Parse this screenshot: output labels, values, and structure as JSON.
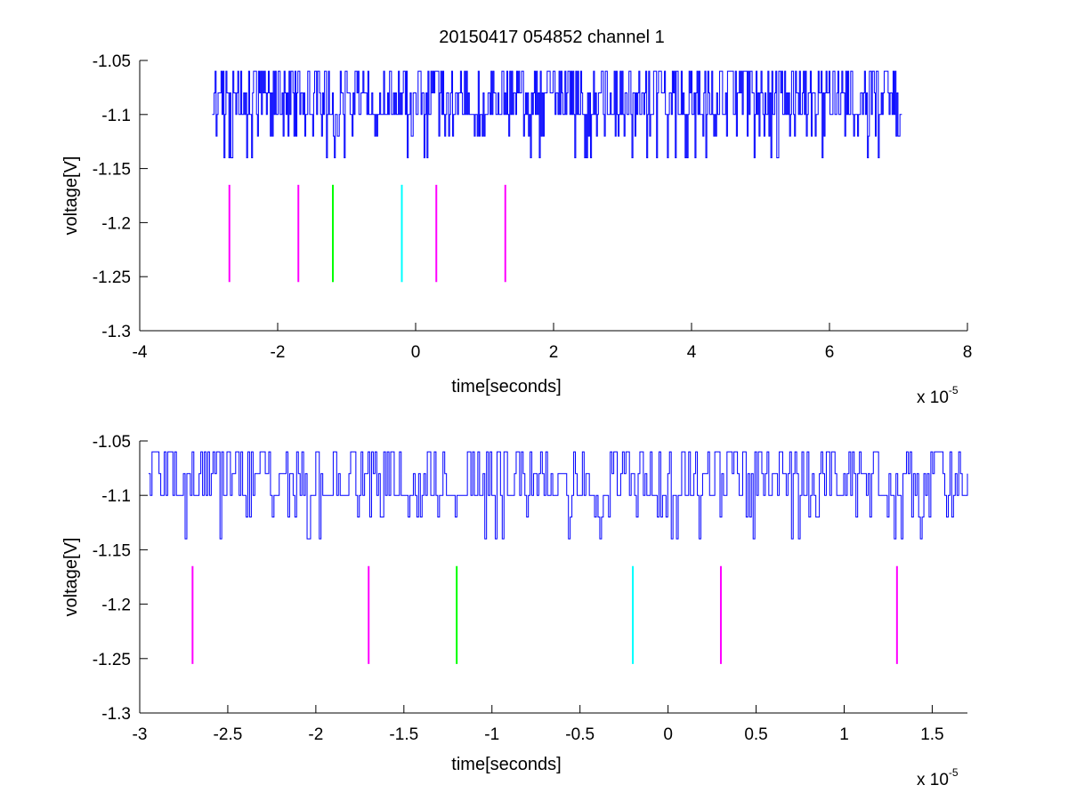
{
  "figure": {
    "title": "20150417 054852 channel 1"
  },
  "chart_data": [
    {
      "type": "line",
      "title": "20150417 054852 channel 1",
      "xlabel": "time[seconds]",
      "ylabel": "voltage[V]",
      "x_scale_label": "x 10",
      "x_scale_exponent": "-5",
      "xlim": [
        -4,
        8
      ],
      "ylim": [
        -1.3,
        -1.05
      ],
      "xticks": [
        -4,
        -2,
        0,
        2,
        4,
        6,
        8
      ],
      "xtick_labels": [
        "-4",
        "-2",
        "0",
        "2",
        "4",
        "6",
        "8"
      ],
      "yticks": [
        -1.05,
        -1.1,
        -1.15,
        -1.2,
        -1.25,
        -1.3
      ],
      "ytick_labels": [
        "-1.05",
        "-1.1",
        "-1.15",
        "-1.2",
        "-1.25",
        "-1.3"
      ],
      "grid": false,
      "signal": {
        "color": "#0000ff",
        "x_range": [
          -2.95,
          7.05
        ],
        "levels": [
          -1.14,
          -1.12,
          -1.1,
          -1.08,
          -1.06
        ],
        "baseline": -1.1
      },
      "markers": [
        {
          "x": -2.7,
          "color": "#ff00ff",
          "y_range": [
            -1.255,
            -1.165
          ]
        },
        {
          "x": -1.7,
          "color": "#ff00ff",
          "y_range": [
            -1.255,
            -1.165
          ]
        },
        {
          "x": -1.2,
          "color": "#00ff00",
          "y_range": [
            -1.255,
            -1.165
          ]
        },
        {
          "x": -0.2,
          "color": "#00ffff",
          "y_range": [
            -1.255,
            -1.165
          ]
        },
        {
          "x": 0.3,
          "color": "#ff00ff",
          "y_range": [
            -1.255,
            -1.165
          ]
        },
        {
          "x": 1.3,
          "color": "#ff00ff",
          "y_range": [
            -1.255,
            -1.165
          ]
        }
      ]
    },
    {
      "type": "line",
      "title": "",
      "xlabel": "time[seconds]",
      "ylabel": "voltage[V]",
      "x_scale_label": "x 10",
      "x_scale_exponent": "-5",
      "xlim": [
        -3,
        1.7
      ],
      "ylim": [
        -1.3,
        -1.05
      ],
      "xticks": [
        -3,
        -2.5,
        -2,
        -1.5,
        -1,
        -0.5,
        0,
        0.5,
        1,
        1.5
      ],
      "xtick_labels": [
        "-3",
        "-2.5",
        "-2",
        "-1.5",
        "-1",
        "-0.5",
        "0",
        "0.5",
        "1",
        "1.5"
      ],
      "yticks": [
        -1.05,
        -1.1,
        -1.15,
        -1.2,
        -1.25,
        -1.3
      ],
      "ytick_labels": [
        "-1.05",
        "-1.1",
        "-1.15",
        "-1.2",
        "-1.25",
        "-1.3"
      ],
      "grid": false,
      "signal": {
        "color": "#0000ff",
        "x_range": [
          -2.95,
          1.7
        ],
        "levels": [
          -1.14,
          -1.12,
          -1.1,
          -1.08,
          -1.06
        ],
        "baseline": -1.1
      },
      "markers": [
        {
          "x": -2.7,
          "color": "#ff00ff",
          "y_range": [
            -1.255,
            -1.165
          ]
        },
        {
          "x": -1.7,
          "color": "#ff00ff",
          "y_range": [
            -1.255,
            -1.165
          ]
        },
        {
          "x": -1.2,
          "color": "#00ff00",
          "y_range": [
            -1.255,
            -1.165
          ]
        },
        {
          "x": -0.2,
          "color": "#00ffff",
          "y_range": [
            -1.255,
            -1.165
          ]
        },
        {
          "x": 0.3,
          "color": "#ff00ff",
          "y_range": [
            -1.255,
            -1.165
          ]
        },
        {
          "x": 1.3,
          "color": "#ff00ff",
          "y_range": [
            -1.255,
            -1.165
          ]
        }
      ]
    }
  ]
}
